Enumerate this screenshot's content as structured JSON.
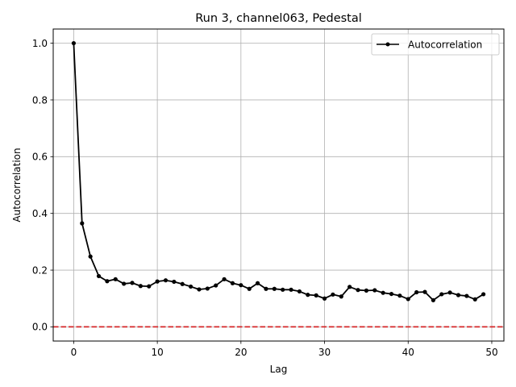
{
  "chart_data": {
    "type": "line",
    "title": "Run 3, channel063, Pedestal",
    "xlabel": "Lag",
    "ylabel": "Autocorrelation",
    "xlim": [
      -2.45,
      51.45
    ],
    "ylim": [
      -0.05,
      1.05
    ],
    "xticks": [
      0,
      10,
      20,
      30,
      40,
      50
    ],
    "xtick_labels": [
      "0",
      "10",
      "20",
      "30",
      "40",
      "50"
    ],
    "yticks": [
      0.0,
      0.2,
      0.4,
      0.6,
      0.8,
      1.0
    ],
    "ytick_labels": [
      "0.0",
      "0.2",
      "0.4",
      "0.6",
      "0.8",
      "1.0"
    ],
    "grid": true,
    "legend_position": "upper right",
    "series": [
      {
        "name": "Autocorrelation",
        "color": "#000000",
        "marker": "dot",
        "x": [
          0,
          1,
          2,
          3,
          4,
          5,
          6,
          7,
          8,
          9,
          10,
          11,
          12,
          13,
          14,
          15,
          16,
          17,
          18,
          19,
          20,
          21,
          22,
          23,
          24,
          25,
          26,
          27,
          28,
          29,
          30,
          31,
          32,
          33,
          34,
          35,
          36,
          37,
          38,
          39,
          40,
          41,
          42,
          43,
          44,
          45,
          46,
          47,
          48,
          49
        ],
        "values": [
          1.0,
          0.365,
          0.248,
          0.179,
          0.161,
          0.168,
          0.152,
          0.155,
          0.144,
          0.143,
          0.16,
          0.164,
          0.159,
          0.151,
          0.142,
          0.132,
          0.135,
          0.146,
          0.168,
          0.154,
          0.147,
          0.134,
          0.154,
          0.134,
          0.134,
          0.131,
          0.131,
          0.125,
          0.113,
          0.111,
          0.1,
          0.114,
          0.107,
          0.141,
          0.13,
          0.128,
          0.129,
          0.12,
          0.116,
          0.11,
          0.098,
          0.122,
          0.123,
          0.094,
          0.115,
          0.121,
          0.112,
          0.109,
          0.097,
          0.115
        ]
      }
    ],
    "reference_line": {
      "y": 0.0,
      "color": "#d62728",
      "style": "dashed"
    }
  }
}
